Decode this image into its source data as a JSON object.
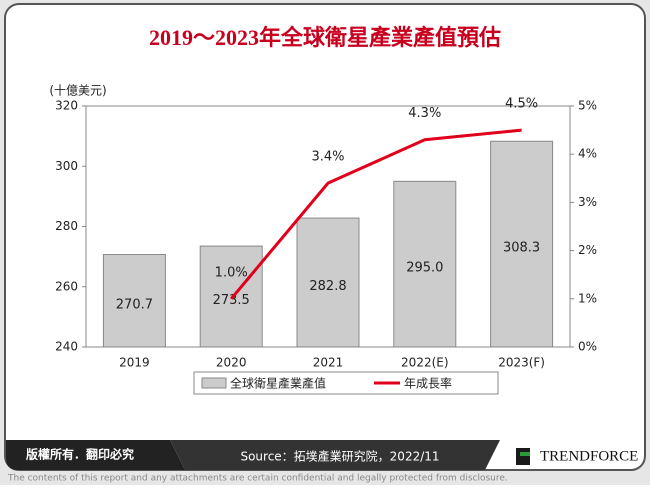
{
  "chart_data": {
    "type": "bar",
    "title": "2019～2023年全球衛星產業產值預估",
    "y_label": "(十億美元)",
    "categories": [
      "2019",
      "2020",
      "2021",
      "2022(E)",
      "2023(F)"
    ],
    "series": [
      {
        "name": "全球衛星產業產值",
        "color": "#cccccc",
        "values": [
          270.7,
          273.5,
          282.8,
          295.0,
          308.3
        ],
        "value_labels": [
          "270.7",
          "273.5",
          "282.8",
          "295.0",
          "308.3"
        ]
      },
      {
        "name": "年成長率",
        "color": "#e0001b",
        "type": "line",
        "axis": "y2",
        "values": [
          null,
          1.0,
          3.4,
          4.3,
          4.5
        ],
        "value_labels": [
          null,
          "1.0%",
          "3.4%",
          "4.3%",
          "4.5%"
        ]
      }
    ],
    "ylim": [
      240,
      320
    ],
    "yticks": [
      240,
      260,
      280,
      300,
      320
    ],
    "y2lim": [
      0,
      5
    ],
    "y2ticks": [
      {
        "value": 0,
        "label": "0%"
      },
      {
        "value": 1,
        "label": "1%"
      },
      {
        "value": 2,
        "label": "2%"
      },
      {
        "value": 3,
        "label": "3%"
      },
      {
        "value": 4,
        "label": "4%"
      },
      {
        "value": 5,
        "label": "5%"
      }
    ],
    "legend": "bottom"
  },
  "footer": {
    "rights": "版權所有．翻印必究",
    "source": "Source：拓墣產業研究院，2022/11",
    "brand": "TRENDFORCE",
    "disclaimer": "The contents of this report and any attachments are certain confidential and legally protected from disclosure."
  }
}
